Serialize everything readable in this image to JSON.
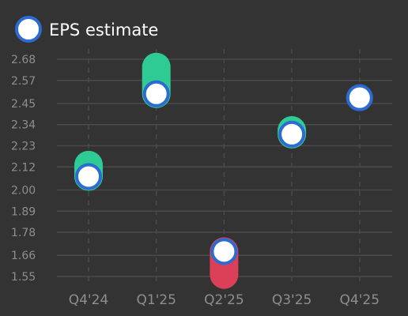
{
  "chart_data": {
    "type": "scatter",
    "legend": {
      "label": "EPS estimate",
      "position": "top-left"
    },
    "categories": [
      "Q4'24",
      "Q1'25",
      "Q2'25",
      "Q3'25",
      "Q4'25"
    ],
    "estimate": [
      2.07,
      2.5,
      1.68,
      2.29,
      2.48
    ],
    "actual": [
      2.13,
      2.64,
      1.56,
      2.31,
      null
    ],
    "y_ticks": [
      "2.68",
      "2.57",
      "2.45",
      "2.34",
      "2.23",
      "2.12",
      "2.00",
      "1.89",
      "1.78",
      "1.66",
      "1.55"
    ],
    "ylim": [
      1.5,
      2.78
    ],
    "grid": true,
    "colors": {
      "beat": "#2ecc94",
      "miss": "#db4058",
      "estimate_fill": "#ffffff",
      "estimate_stroke": "#2c6bd1",
      "grid": "#4a4a4a",
      "text": "#8e8e8e",
      "background": "#333333"
    }
  }
}
